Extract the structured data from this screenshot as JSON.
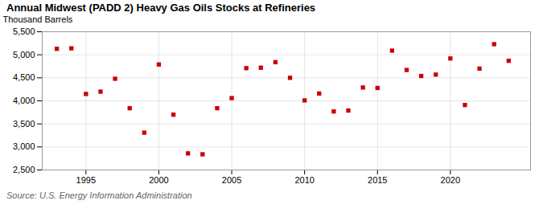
{
  "chart_data": {
    "type": "scatter",
    "title": "Annual Midwest (PADD 2) Heavy Gas Oils Stocks at Refineries",
    "ylabel": "Thousand Barrels",
    "source": "Source: U.S. Energy Information Administration",
    "x": [
      1993,
      1994,
      1995,
      1996,
      1997,
      1998,
      1999,
      2000,
      2001,
      2002,
      2003,
      2004,
      2005,
      2006,
      2007,
      2008,
      2009,
      2010,
      2011,
      2012,
      2013,
      2014,
      2015,
      2016,
      2017,
      2018,
      2019,
      2020,
      2021,
      2022,
      2023,
      2024
    ],
    "values": [
      5130,
      5140,
      4150,
      4200,
      4480,
      3840,
      3310,
      4790,
      3700,
      2860,
      2840,
      3840,
      4060,
      4710,
      4720,
      4840,
      4500,
      4010,
      4160,
      3770,
      3790,
      4290,
      4280,
      5090,
      4670,
      4540,
      4570,
      4920,
      3910,
      4700,
      5230,
      4870
    ],
    "color": "#cc0000",
    "marker": "square",
    "xlim": [
      1992.0,
      2025.5
    ],
    "xticks": [
      1995,
      2000,
      2005,
      2010,
      2015,
      2020
    ],
    "ylim": [
      2500,
      5500
    ],
    "yticks": [
      {
        "value": 2500,
        "label": "2,500"
      },
      {
        "value": 3000,
        "label": "3,000"
      },
      {
        "value": 3500,
        "label": "3,500"
      },
      {
        "value": 4000,
        "label": "4,000"
      },
      {
        "value": 4500,
        "label": "4,500"
      },
      {
        "value": 5000,
        "label": "5,000"
      },
      {
        "value": 5500,
        "label": "5,500"
      }
    ],
    "grid": true
  }
}
